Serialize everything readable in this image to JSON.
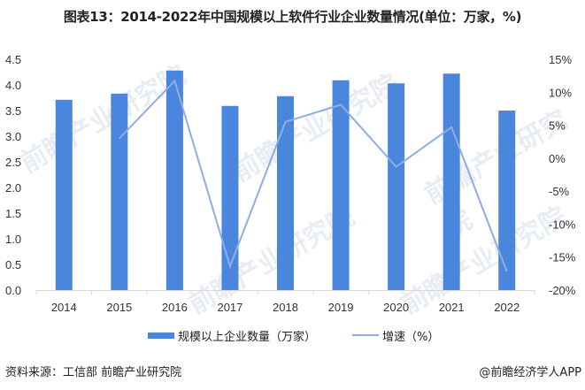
{
  "title": "图表13：2014-2022年中国规模以上软件行业企业数量情况(单位：万家，%)",
  "legend": {
    "bar_label": "规模以上企业数量（万家）",
    "line_label": "增速（%）"
  },
  "footer": {
    "source": "资料来源：工信部 前瞻产业研究院",
    "brand": "@前瞻经济学人APP"
  },
  "watermark": "前瞻产业研究院",
  "colors": {
    "bar": "#4a86de",
    "line": "#8eaee2",
    "axis": "#d9d9d9"
  },
  "chart_data": {
    "type": "bar",
    "title": "图表13：2014-2022年中国规模以上软件行业企业数量情况(单位：万家，%)",
    "categories": [
      "2014",
      "2015",
      "2016",
      "2017",
      "2018",
      "2019",
      "2020",
      "2021",
      "2022"
    ],
    "series": [
      {
        "name": "规模以上企业数量（万家）",
        "type": "bar",
        "axis": "left",
        "values": [
          3.71,
          3.83,
          4.28,
          3.59,
          3.78,
          4.09,
          4.03,
          4.22,
          3.5
        ]
      },
      {
        "name": "增速（%）",
        "type": "line",
        "axis": "right",
        "values": [
          null,
          3.0,
          11.7,
          -16.4,
          5.5,
          8.1,
          -1.3,
          4.7,
          -17.2
        ]
      }
    ],
    "left_axis": {
      "min": 0,
      "max": 4.5,
      "step": 0.5,
      "ticks": [
        "0.0",
        "0.5",
        "1.0",
        "1.5",
        "2.0",
        "2.5",
        "3.0",
        "3.5",
        "4.0",
        "4.5"
      ]
    },
    "right_axis": {
      "min": -20,
      "max": 15,
      "step": 5,
      "ticks": [
        "-20%",
        "-15%",
        "-10%",
        "-5%",
        "0%",
        "5%",
        "10%",
        "15%"
      ]
    },
    "xlabel": "",
    "ylabel": "",
    "grid": false,
    "legend_position": "bottom"
  }
}
